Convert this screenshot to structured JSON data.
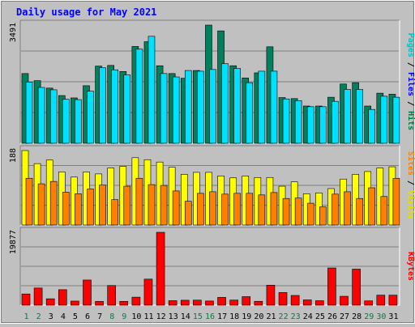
{
  "chart_data": {
    "type": "bar",
    "title": "Daily usage for May 2021",
    "categories": [
      "1",
      "2",
      "3",
      "4",
      "5",
      "6",
      "7",
      "8",
      "9",
      "10",
      "11",
      "12",
      "13",
      "14",
      "15",
      "16",
      "17",
      "18",
      "19",
      "20",
      "21",
      "22",
      "23",
      "24",
      "25",
      "26",
      "27",
      "28",
      "29",
      "30",
      "31"
    ],
    "weekend_categories": [
      "1",
      "2",
      "8",
      "9",
      "15",
      "16",
      "22",
      "23",
      "29",
      "30"
    ],
    "panels": [
      {
        "id": "hits-files-pages",
        "ymax": 3491,
        "ymax_label": "3491",
        "axis_label_parts": [
          {
            "text": "Pages",
            "color": "#00c0c0"
          },
          {
            "text": " / ",
            "color": "#000000"
          },
          {
            "text": "Files",
            "color": "#0000ff"
          },
          {
            "text": " / ",
            "color": "#000000"
          },
          {
            "text": "Hits",
            "color": "#008040"
          }
        ],
        "series": [
          {
            "name": "Hits",
            "color": "#00805c",
            "values": [
              2060,
              1850,
              1630,
              1410,
              1340,
              1700,
              2280,
              2300,
              2120,
              2860,
              3000,
              2290,
              2060,
              1920,
              2150,
              3491,
              3320,
              2290,
              1930,
              2080,
              2850,
              1350,
              1320,
              1100,
              1100,
              1360,
              1750,
              1790,
              1100,
              1480,
              1450
            ]
          },
          {
            "name": "Files",
            "color": "#00e0ff",
            "values": [
              1810,
              1650,
              1580,
              1300,
              1290,
              1540,
              2230,
              2170,
              2020,
              2780,
              3160,
              2060,
              1960,
              2150,
              2130,
              2180,
              2350,
              2210,
              1790,
              2130,
              2130,
              1310,
              1260,
              1080,
              1080,
              1240,
              1590,
              1590,
              1000,
              1390,
              1360
            ]
          }
        ]
      },
      {
        "id": "visits-sites",
        "ymax": 188,
        "ymax_label": "188",
        "axis_label_parts": [
          {
            "text": "Sites",
            "color": "#ff8000"
          },
          {
            "text": " / ",
            "color": "#000000"
          },
          {
            "text": "Visits",
            "color": "#e0e000"
          }
        ],
        "series": [
          {
            "name": "Visits",
            "color": "#ffff00",
            "values": [
              188,
              155,
              164,
              134,
              121,
              134,
              129,
              144,
              148,
              170,
              165,
              159,
              146,
              128,
              133,
              133,
              124,
              119,
              124,
              120,
              120,
              98,
              109,
              79,
              81,
              92,
              116,
              128,
              135,
              144,
              147
            ]
          },
          {
            "name": "Sites",
            "color": "#ff8000",
            "values": [
              118,
              104,
              110,
              83,
              79,
              91,
              101,
              64,
              98,
              118,
              102,
              100,
              86,
              60,
              80,
              84,
              78,
              80,
              80,
              76,
              82,
              67,
              68,
              55,
              46,
              78,
              84,
              67,
              94,
              72,
              118
            ]
          }
        ]
      },
      {
        "id": "kbytes",
        "ymax": 19877,
        "ymax_label": "19877",
        "axis_label_parts": [
          {
            "text": "KBytes",
            "color": "#ff0000"
          }
        ],
        "series": [
          {
            "name": "KBytes",
            "color": "#ff0000",
            "values": [
              3050,
              4670,
              1740,
              4220,
              1110,
              6860,
              1020,
              5360,
              1030,
              2180,
              7100,
              19877,
              1220,
              1340,
              1370,
              1130,
              2120,
              1380,
              2320,
              1050,
              5450,
              3440,
              2650,
              1440,
              1210,
              10150,
              2420,
              9830,
              1160,
              2730,
              2730
            ]
          }
        ]
      }
    ]
  }
}
